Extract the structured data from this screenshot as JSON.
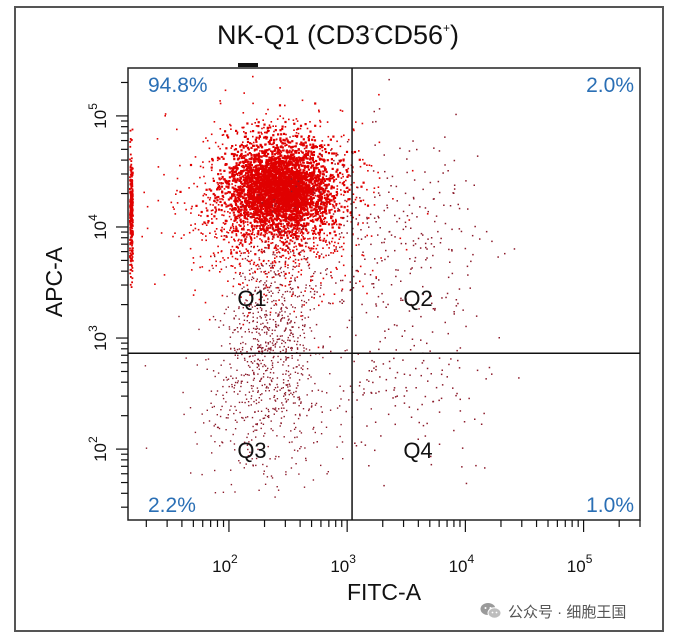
{
  "chart_data": {
    "type": "scatter",
    "title_main": "NK-Q1 (CD3",
    "title_sup1": "-",
    "title_mid": "CD56",
    "title_sup2": "+",
    "title_end": ")",
    "xlabel": "FITC-A",
    "ylabel": "APC-A",
    "x_scale": "log",
    "y_scale": "log",
    "x_ticks": [
      {
        "base": "10",
        "exp": "2",
        "value": 100
      },
      {
        "base": "10",
        "exp": "3",
        "value": 1000
      },
      {
        "base": "10",
        "exp": "4",
        "value": 10000
      },
      {
        "base": "10",
        "exp": "5",
        "value": 100000
      }
    ],
    "y_ticks": [
      {
        "base": "10",
        "exp": "2",
        "value": 100
      },
      {
        "base": "10",
        "exp": "3",
        "value": 1000
      },
      {
        "base": "10",
        "exp": "4",
        "value": 10000
      },
      {
        "base": "10",
        "exp": "5",
        "value": 100000
      }
    ],
    "x_gate": 1100,
    "y_gate": 730,
    "quadrants": [
      {
        "name": "Q1",
        "percent": "94.8%",
        "position": "top-left"
      },
      {
        "name": "Q2",
        "percent": "2.0%",
        "position": "top-right"
      },
      {
        "name": "Q3",
        "percent": "2.2%",
        "position": "bottom-left"
      },
      {
        "name": "Q4",
        "percent": "1.0%",
        "position": "bottom-right"
      }
    ],
    "point_color": "#e00000",
    "point_color_sparse": "#8b1a2a",
    "grid": false,
    "legend": "none"
  },
  "watermark": {
    "text": "公众号 · 细胞王国",
    "icon": "wechat-icon"
  }
}
